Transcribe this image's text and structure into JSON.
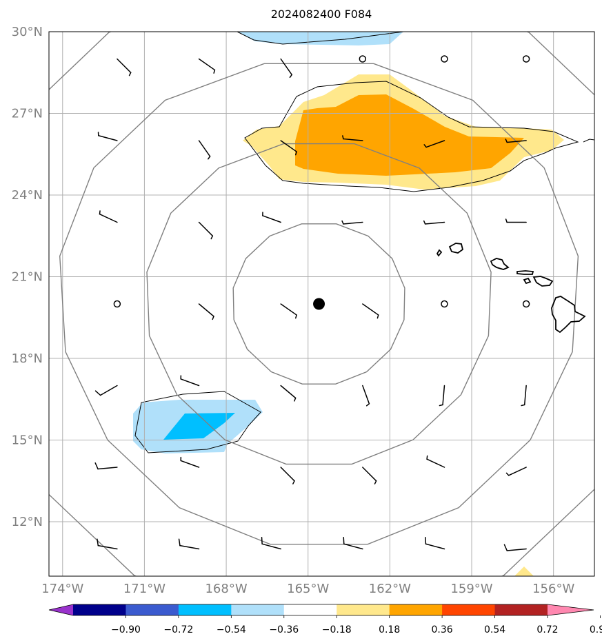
{
  "title": "2024082400 F084",
  "map": {
    "lon_range": [
      -174.5,
      -154.5
    ],
    "lat_range": [
      10,
      30
    ],
    "lon_ticks": [
      {
        "value": -174,
        "label": "174°W"
      },
      {
        "value": -171,
        "label": "171°W"
      },
      {
        "value": -168,
        "label": "168°W"
      },
      {
        "value": -165,
        "label": "165°W"
      },
      {
        "value": -162,
        "label": "162°W"
      },
      {
        "value": -159,
        "label": "159°W"
      },
      {
        "value": -156,
        "label": "156°W"
      }
    ],
    "lat_ticks": [
      {
        "value": 30,
        "label": "30°N"
      },
      {
        "value": 27,
        "label": "27°N"
      },
      {
        "value": 24,
        "label": "24°N"
      },
      {
        "value": 21,
        "label": "21°N"
      },
      {
        "value": 18,
        "label": "18°N"
      },
      {
        "value": 15,
        "label": "15°N"
      },
      {
        "value": 12,
        "label": "12°N"
      }
    ],
    "center": {
      "lon": -164.6,
      "lat": 20.0
    },
    "range_rings_deg": [
      3,
      6,
      9,
      12
    ]
  },
  "colorbar": {
    "ticks": [
      "−0.90",
      "−0.72",
      "−0.54",
      "−0.36",
      "−0.18",
      "0.18",
      "0.36",
      "0.54",
      "0.72",
      "0.90"
    ],
    "colors": [
      "#9932cc",
      "#00008b",
      "#3b5bcf",
      "#00bfff",
      "#b0e0fa",
      "#ffffff",
      "#ffe88c",
      "#ffa500",
      "#ff4500",
      "#b22222",
      "#ff88b0"
    ]
  },
  "barbs": {
    "lons": [
      -172,
      -169,
      -166,
      -163,
      -160,
      -157
    ],
    "lats": [
      29,
      26,
      23,
      20,
      17,
      14,
      11
    ],
    "rows": [
      [
        [
          135,
          5
        ],
        [
          125,
          5
        ],
        [
          145,
          5
        ],
        [
          0,
          0
        ],
        [
          0,
          0
        ],
        [
          0,
          0
        ]
      ],
      [
        [
          285,
          5
        ],
        [
          145,
          5
        ],
        [
          125,
          5
        ],
        [
          275,
          5
        ],
        [
          250,
          5
        ],
        [
          265,
          5
        ]
      ],
      [
        [
          295,
          5
        ],
        [
          135,
          5
        ],
        [
          290,
          5
        ],
        [
          265,
          5
        ],
        [
          265,
          5
        ],
        [
          270,
          5
        ]
      ],
      [
        [
          0,
          0
        ],
        [
          130,
          5
        ],
        [
          125,
          5
        ],
        [
          125,
          5
        ],
        [
          0,
          0
        ],
        [
          0,
          0
        ]
      ],
      [
        [
          240,
          10
        ],
        [
          290,
          5
        ],
        [
          130,
          5
        ],
        [
          160,
          5
        ],
        [
          185,
          5
        ],
        [
          185,
          5
        ]
      ],
      [
        [
          265,
          10
        ],
        [
          290,
          5
        ],
        [
          135,
          5
        ],
        [
          135,
          5
        ],
        [
          295,
          5
        ],
        [
          245,
          5
        ]
      ],
      [
        [
          280,
          10
        ],
        [
          280,
          10
        ],
        [
          285,
          10
        ],
        [
          285,
          10
        ],
        [
          285,
          10
        ],
        [
          265,
          10
        ]
      ]
    ]
  }
}
